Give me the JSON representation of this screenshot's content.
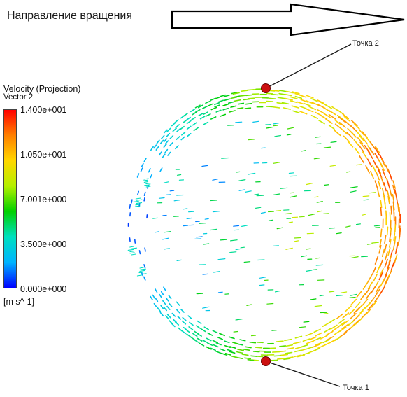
{
  "header": {
    "rotation_label": "Направление вращения"
  },
  "legend": {
    "title": "Velocity (Projection)",
    "subtitle": "Vector 2",
    "ticks": [
      "1.400e+001",
      "1.050e+001",
      "7.001e+000",
      "3.500e+000",
      "0.000e+000"
    ],
    "unit": "[m s^-1]",
    "range": [
      0,
      14
    ],
    "colormap": [
      "#0000ff",
      "#00b4ff",
      "#00e0c0",
      "#00d000",
      "#b4f000",
      "#ffd700",
      "#ff8000",
      "#ff0000"
    ]
  },
  "points": {
    "point1_label": "Точка 1",
    "point2_label": "Точка 2",
    "marker_color": "#cc1010"
  },
  "colors": {
    "leader_line": "#1a1a1a",
    "arrow_outline": "#000000"
  }
}
